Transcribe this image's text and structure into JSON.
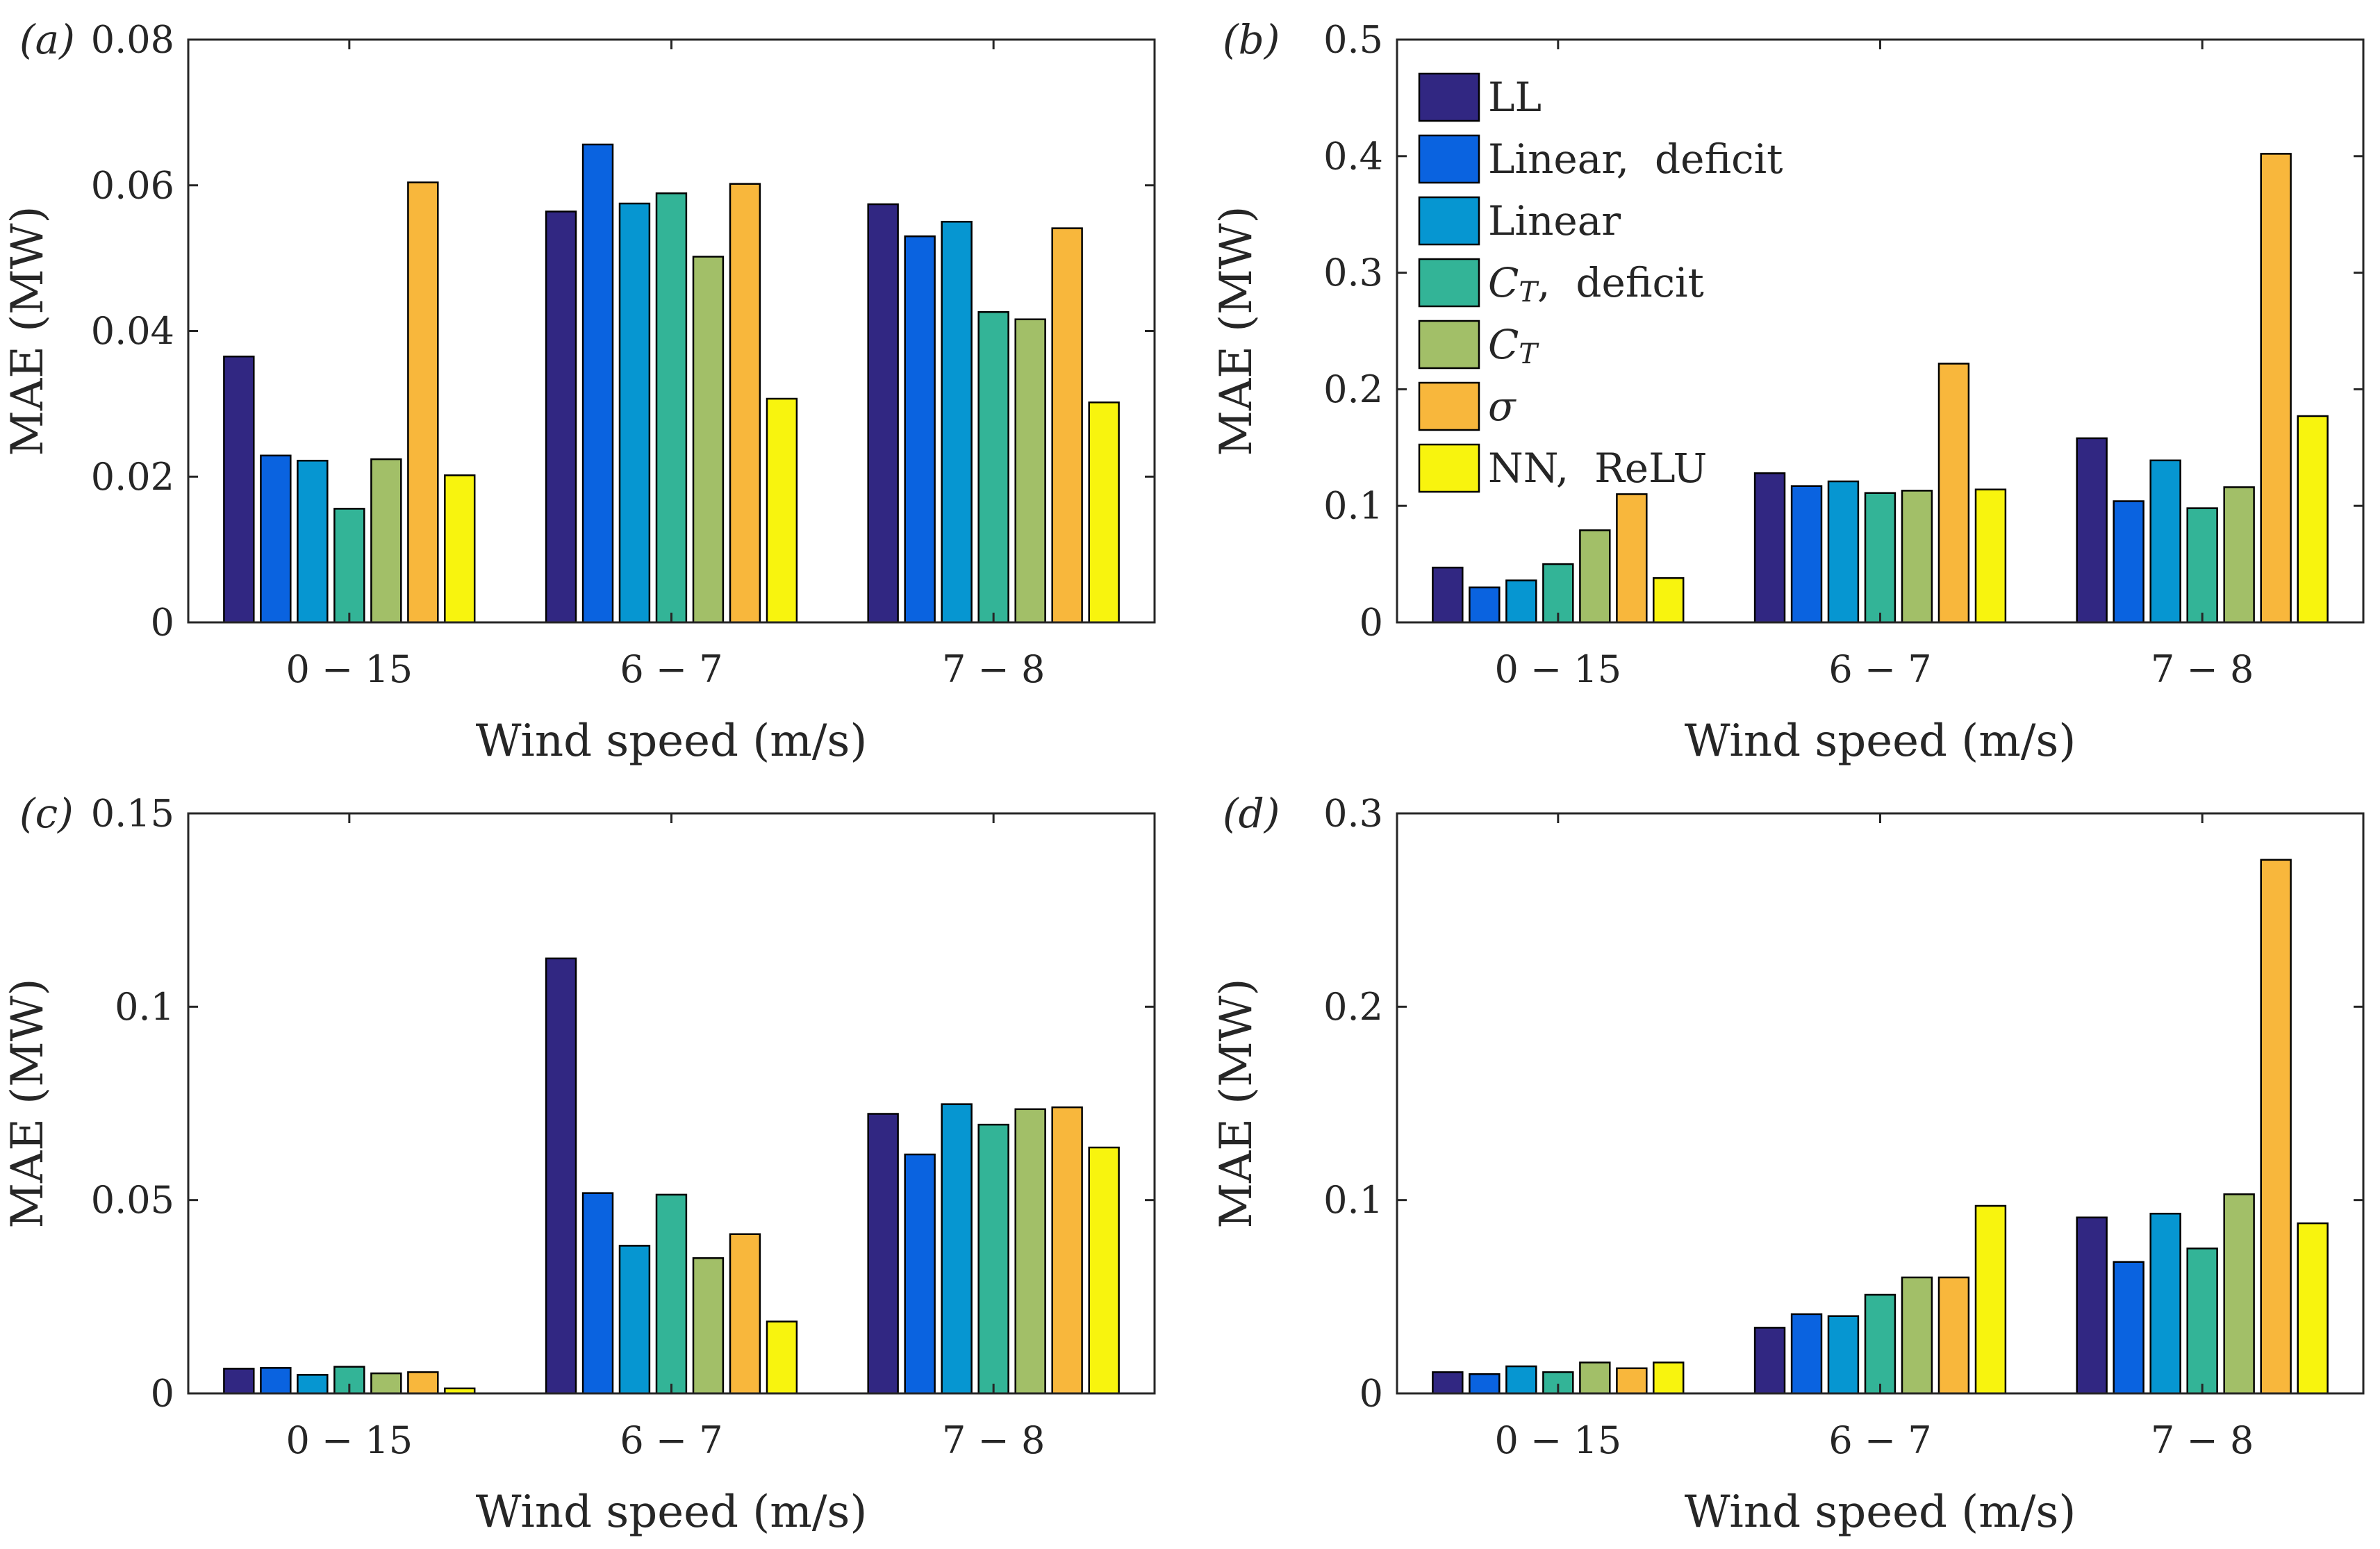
{
  "figure": {
    "legend_series": [
      "LL",
      "Linear,  deficit",
      "Linear",
      "C_T,  deficit",
      "C_T",
      "σ",
      "NN,  ReLU"
    ],
    "colors": [
      "#312782",
      "#0a63e0",
      "#0696d1",
      "#33b497",
      "#a2bf68",
      "#f8b73c",
      "#f8f40e"
    ]
  },
  "chart_data": [
    {
      "panel": "(a)",
      "type": "bar",
      "categories": [
        "0 − 15",
        "6 − 7",
        "7 − 8"
      ],
      "xlabel": "Wind speed (m/s)",
      "ylabel": "MAE (MW)",
      "ylim": [
        0,
        0.08
      ],
      "yticks": [
        0,
        0.02,
        0.04,
        0.06,
        0.08
      ],
      "ytick_labels": [
        "0",
        "0.02",
        "0.04",
        "0.06",
        "0.08"
      ],
      "series": [
        {
          "name": "LL",
          "values": [
            0.0365,
            0.0564,
            0.0574
          ]
        },
        {
          "name": "Linear, deficit",
          "values": [
            0.0229,
            0.0656,
            0.053
          ]
        },
        {
          "name": "Linear",
          "values": [
            0.0222,
            0.0575,
            0.055
          ]
        },
        {
          "name": "C_T, deficit",
          "values": [
            0.0156,
            0.0589,
            0.0426
          ]
        },
        {
          "name": "C_T",
          "values": [
            0.0224,
            0.0502,
            0.0416
          ]
        },
        {
          "name": "σ",
          "values": [
            0.0604,
            0.0602,
            0.0541
          ]
        },
        {
          "name": "NN, ReLU",
          "values": [
            0.0202,
            0.0307,
            0.0302
          ]
        }
      ]
    },
    {
      "panel": "(b)",
      "type": "bar",
      "categories": [
        "0 − 15",
        "6 − 7",
        "7 − 8"
      ],
      "xlabel": "Wind speed (m/s)",
      "ylabel": "MAE (MW)",
      "ylim": [
        0,
        0.5
      ],
      "yticks": [
        0,
        0.1,
        0.2,
        0.3,
        0.4,
        0.5
      ],
      "ytick_labels": [
        "0",
        "0.1",
        "0.2",
        "0.3",
        "0.4",
        "0.5"
      ],
      "series": [
        {
          "name": "LL",
          "values": [
            0.047,
            0.128,
            0.158
          ]
        },
        {
          "name": "Linear, deficit",
          "values": [
            0.03,
            0.117,
            0.104
          ]
        },
        {
          "name": "Linear",
          "values": [
            0.036,
            0.121,
            0.139
          ]
        },
        {
          "name": "C_T, deficit",
          "values": [
            0.05,
            0.111,
            0.098
          ]
        },
        {
          "name": "C_T",
          "values": [
            0.079,
            0.113,
            0.116
          ]
        },
        {
          "name": "σ",
          "values": [
            0.11,
            0.222,
            0.402
          ]
        },
        {
          "name": "NN, ReLU",
          "values": [
            0.038,
            0.114,
            0.177
          ]
        }
      ]
    },
    {
      "panel": "(c)",
      "type": "bar",
      "categories": [
        "0 − 15",
        "6 − 7",
        "7 − 8"
      ],
      "xlabel": "Wind speed (m/s)",
      "ylabel": "MAE (MW)",
      "ylim": [
        0,
        0.15
      ],
      "yticks": [
        0,
        0.05,
        0.1,
        0.15
      ],
      "ytick_labels": [
        "0",
        "0.05",
        "0.1",
        "0.15"
      ],
      "series": [
        {
          "name": "LL",
          "values": [
            0.0064,
            0.1125,
            0.0723
          ]
        },
        {
          "name": "Linear, deficit",
          "values": [
            0.0066,
            0.0518,
            0.0618
          ]
        },
        {
          "name": "Linear",
          "values": [
            0.0048,
            0.0382,
            0.0748
          ]
        },
        {
          "name": "C_T, deficit",
          "values": [
            0.0069,
            0.0514,
            0.0695
          ]
        },
        {
          "name": "C_T",
          "values": [
            0.0052,
            0.035,
            0.0735
          ]
        },
        {
          "name": "σ",
          "values": [
            0.0055,
            0.0412,
            0.074
          ]
        },
        {
          "name": "NN, ReLU",
          "values": [
            0.0013,
            0.0186,
            0.0636
          ]
        }
      ]
    },
    {
      "panel": "(d)",
      "type": "bar",
      "categories": [
        "0 − 15",
        "6 − 7",
        "7 − 8"
      ],
      "xlabel": "Wind speed (m/s)",
      "ylabel": "MAE (MW)",
      "ylim": [
        0,
        0.3
      ],
      "yticks": [
        0,
        0.1,
        0.2,
        0.3
      ],
      "ytick_labels": [
        "0",
        "0.1",
        "0.2",
        "0.3"
      ],
      "series": [
        {
          "name": "LL",
          "values": [
            0.011,
            0.034,
            0.091
          ]
        },
        {
          "name": "Linear, deficit",
          "values": [
            0.01,
            0.041,
            0.068
          ]
        },
        {
          "name": "Linear",
          "values": [
            0.014,
            0.04,
            0.093
          ]
        },
        {
          "name": "C_T, deficit",
          "values": [
            0.011,
            0.051,
            0.075
          ]
        },
        {
          "name": "C_T",
          "values": [
            0.016,
            0.06,
            0.103
          ]
        },
        {
          "name": "σ",
          "values": [
            0.013,
            0.06,
            0.276
          ]
        },
        {
          "name": "NN, ReLU",
          "values": [
            0.016,
            0.097,
            0.088
          ]
        }
      ]
    }
  ]
}
